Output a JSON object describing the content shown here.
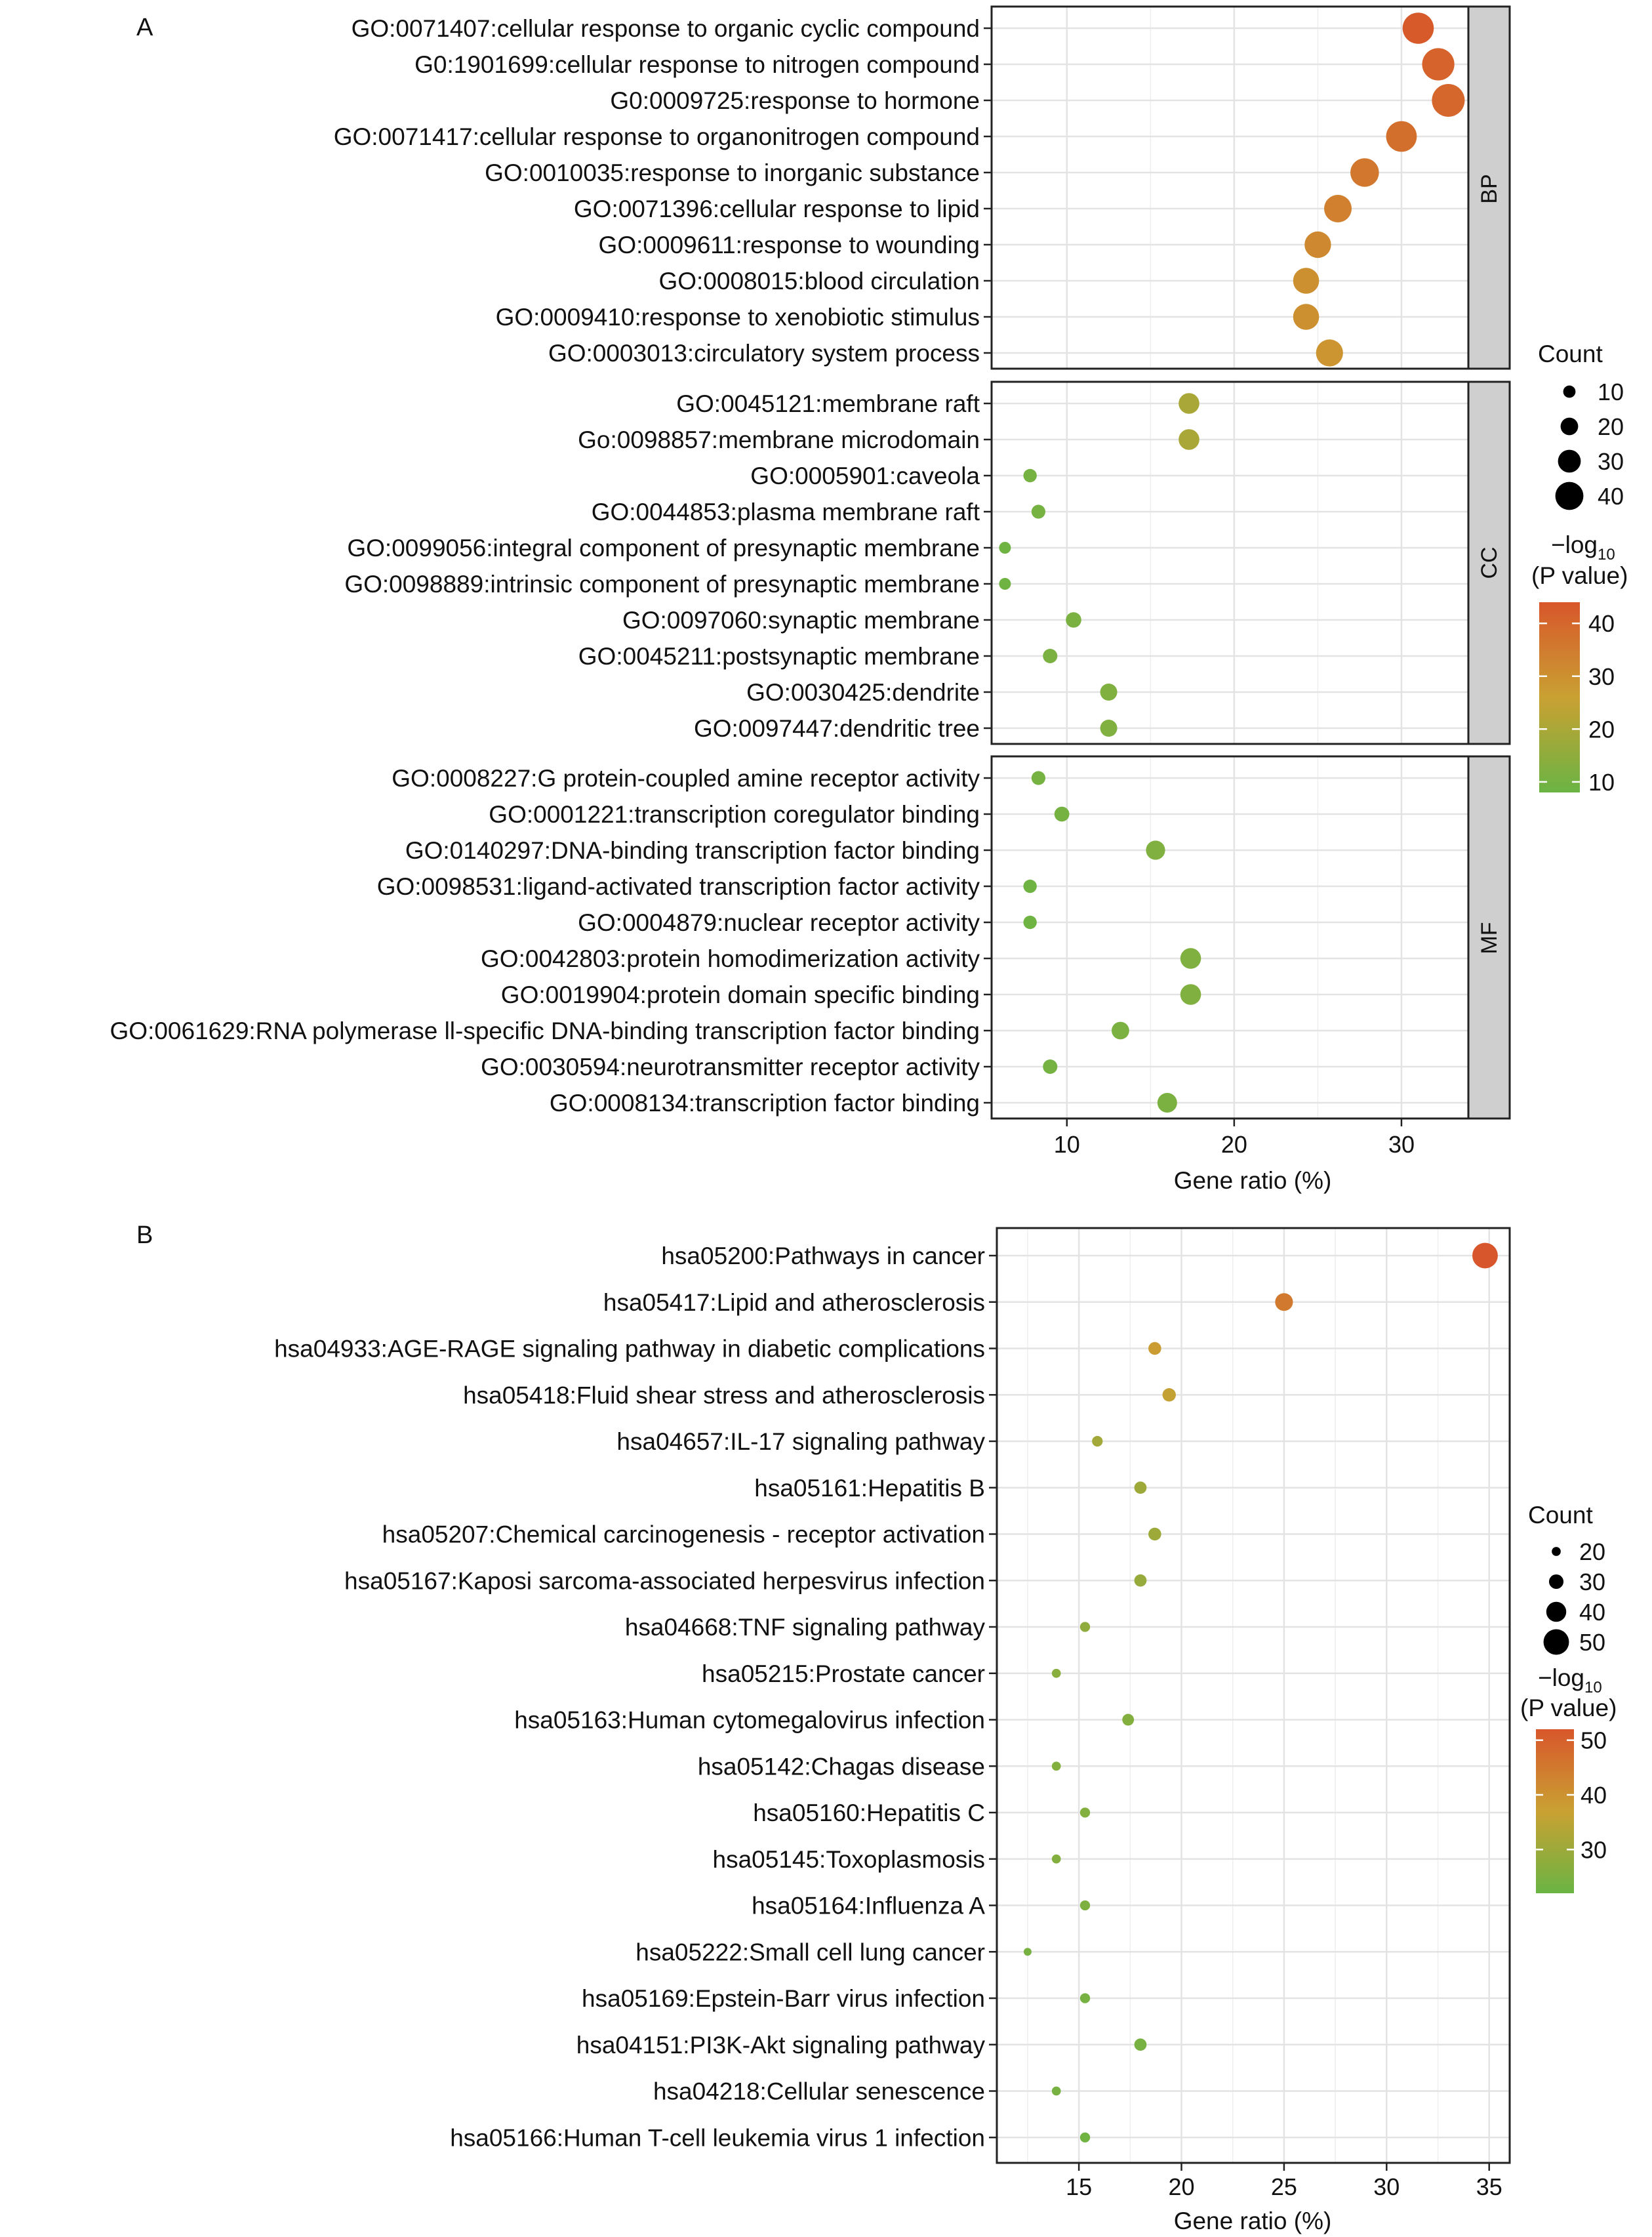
{
  "chart_data": [
    {
      "panel_label": "A",
      "type": "scatter",
      "xlabel": "Gene ratio (%)",
      "xlim": [
        5.5,
        34
      ],
      "xticks": [
        10,
        20,
        30
      ],
      "grid": true,
      "size_legend": {
        "title": "Count",
        "values": [
          10,
          20,
          30,
          40
        ]
      },
      "color_legend": {
        "title_line1": "−log",
        "title_sub": "10",
        "title_line2": "(P value)",
        "ticks": [
          40,
          30,
          20,
          10
        ],
        "range": [
          8,
          44
        ],
        "colors": [
          "#6ab444",
          "#c9a132",
          "#d8562b"
        ]
      },
      "facets": [
        {
          "label": "BP",
          "terms": [
            "GO:0071407:cellular response to organic cyclic compound",
            "G0:1901699:cellular response to nitrogen compound",
            "G0:0009725:response to hormone",
            "GO:0071417:cellular response to organonitrogen compound",
            "GO:0010035:response to inorganic substance",
            "GO:0071396:cellular response to lipid",
            "GO:0009611:response to wounding",
            "GO:0008015:blood circulation",
            "GO:0009410:response to xenobiotic stimulus",
            "GO:0003013:circulatory system process"
          ],
          "gene_ratio": [
            31.0,
            32.2,
            32.8,
            30.0,
            27.8,
            26.2,
            25.0,
            24.3,
            24.3,
            25.7
          ],
          "count": [
            46,
            48,
            49,
            45,
            41,
            39,
            37,
            36,
            36,
            38
          ],
          "neg_log10_p": [
            43,
            41,
            40,
            38,
            36,
            34,
            32,
            30,
            30,
            29
          ]
        },
        {
          "label": "CC",
          "terms": [
            "GO:0045121:membrane raft",
            "Go:0098857:membrane microdomain",
            "GO:0005901:caveola",
            "GO:0044853:plasma membrane raft",
            "GO:0099056:integral component of presynaptic membrane",
            "GO:0098889:intrinsic component of presynaptic membrane",
            "GO:0097060:synaptic membrane",
            "GO:0045211:postsynaptic membrane",
            "GO:0030425:dendrite",
            "GO:0097447:dendritic tree"
          ],
          "gene_ratio": [
            17.3,
            17.3,
            7.8,
            8.3,
            6.3,
            6.3,
            10.4,
            9.0,
            12.5,
            12.5
          ],
          "count": [
            26,
            26,
            12,
            13,
            9,
            9,
            16,
            14,
            19,
            19
          ],
          "neg_log10_p": [
            20,
            20,
            10,
            10,
            9,
            9,
            11,
            11,
            12,
            12
          ]
        },
        {
          "label": "MF",
          "terms": [
            "GO:0008227:G protein-coupled amine receptor activity",
            "GO:0001221:transcription coregulator binding",
            "GO:0140297:DNA-binding transcription factor binding",
            "GO:0098531:ligand-activated transcription factor activity",
            "GO:0004879:nuclear receptor activity",
            "GO:0042803:protein homodimerization activity",
            "GO:0019904:protein domain specific binding",
            "GO:0061629:RNA polymerase ll-specific DNA-binding transcription factor binding",
            "GO:0030594:neurotransmitter receptor activity",
            "GO:0008134:transcription factor binding"
          ],
          "gene_ratio": [
            8.3,
            9.7,
            15.3,
            7.8,
            7.8,
            17.4,
            17.4,
            13.2,
            9.0,
            16.0
          ],
          "count": [
            13,
            15,
            23,
            12,
            12,
            26,
            26,
            20,
            14,
            24
          ],
          "neg_log10_p": [
            10,
            10,
            12,
            9,
            9,
            12,
            12,
            11,
            10,
            11
          ]
        }
      ]
    },
    {
      "panel_label": "B",
      "type": "scatter",
      "xlabel": "Gene ratio (%)",
      "xlim": [
        11,
        36
      ],
      "xticks": [
        15,
        20,
        25,
        30,
        35
      ],
      "grid": true,
      "size_legend": {
        "title": "Count",
        "values": [
          20,
          30,
          40,
          50
        ]
      },
      "color_legend": {
        "title_line1": "−log",
        "title_sub": "10",
        "title_line2": "(P value)",
        "ticks": [
          50,
          40,
          30
        ],
        "range": [
          22,
          52
        ],
        "colors": [
          "#6ab444",
          "#c9a132",
          "#d8562b"
        ]
      },
      "terms": [
        "hsa05200:Pathways in cancer",
        "hsa05417:Lipid and atherosclerosis",
        "hsa04933:AGE-RAGE signaling pathway in diabetic complications",
        "hsa05418:Fluid shear stress and atherosclerosis",
        "hsa04657:IL-17 signaling pathway",
        "hsa05161:Hepatitis B",
        "hsa05207:Chemical carcinogenesis - receptor activation",
        "hsa05167:Kaposi sarcoma-associated herpesvirus infection",
        "hsa04668:TNF signaling pathway",
        "hsa05215:Prostate cancer",
        "hsa05163:Human cytomegalovirus infection",
        "hsa05142:Chagas disease",
        "hsa05160:Hepatitis C",
        "hsa05145:Toxoplasmosis",
        "hsa05164:Influenza A",
        "hsa05222:Small cell lung cancer",
        "hsa05169:Epstein-Barr virus infection",
        "hsa04151:PI3K-Akt signaling pathway",
        "hsa04218:Cellular senescence",
        "hsa05166:Human T-cell leukemia virus 1 infection"
      ],
      "gene_ratio": [
        34.8,
        25.0,
        18.7,
        19.4,
        15.9,
        18.0,
        18.7,
        18.0,
        15.3,
        13.9,
        17.4,
        13.9,
        15.3,
        13.9,
        15.3,
        12.5,
        15.3,
        18.0,
        13.9,
        15.3
      ],
      "count": [
        50,
        36,
        27,
        28,
        23,
        26,
        27,
        26,
        22,
        20,
        25,
        20,
        22,
        20,
        22,
        18,
        22,
        26,
        20,
        22
      ],
      "neg_log10_p": [
        52,
        45,
        38,
        36,
        31,
        30,
        30,
        29,
        28,
        27,
        26,
        26,
        26,
        26,
        25,
        24,
        24,
        24,
        24,
        23
      ]
    }
  ]
}
